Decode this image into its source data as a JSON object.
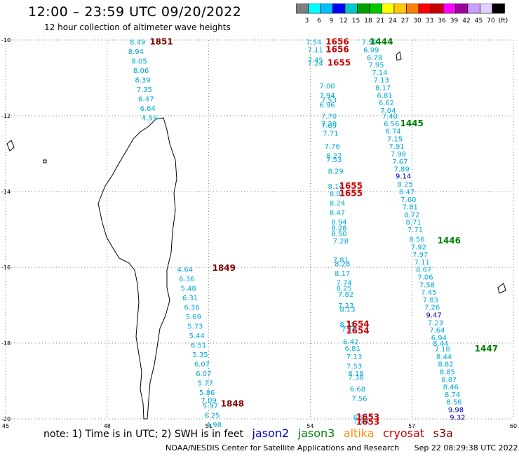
{
  "header": {
    "title": "12:00 – 23:59 UTC 09/20/2022",
    "subtitle": "12 hour collection of altimeter wave heights"
  },
  "colorbar": {
    "colors": [
      "#7f7f7f",
      "#00ffff",
      "#00bfff",
      "#0000ff",
      "#00c8c8",
      "#00a000",
      "#00c800",
      "#ffff00",
      "#ffc800",
      "#ff8000",
      "#ff0000",
      "#c80000",
      "#ff00ff",
      "#a000a0",
      "#c8a0ff",
      "#e0d0ff",
      "#000000"
    ],
    "labels": [
      "3",
      "6",
      "9",
      "12",
      "15",
      "18",
      "21",
      "24",
      "27",
      "30",
      "33",
      "36",
      "39",
      "42",
      "45",
      "70",
      "(ft)"
    ]
  },
  "axes": {
    "lat_labels": [
      "-10",
      "-12",
      "-14",
      "-16",
      "-18",
      "-20"
    ],
    "lon_labels": [
      "45",
      "48",
      "51",
      "54",
      "57",
      "60"
    ]
  },
  "colors": {
    "jason2": "#0000cc",
    "jason3": "#008000",
    "altika": "#ff8c00",
    "cryosat": "#cc0000",
    "s3a": "#800000",
    "wave": "#00a8d8",
    "wave_dark": "#0000b0"
  },
  "tracks": [
    {
      "id": "t1851",
      "time": "1851",
      "time_color": "#800000",
      "time_pos": [
        53.8,
        10.05
      ],
      "points": [
        {
          "v": "8.49",
          "lon": 48.9,
          "lat": -10.05
        },
        {
          "v": "8.94",
          "lon": 48.85,
          "lat": -10.3
        },
        {
          "v": "8.05",
          "lon": 48.95,
          "lat": -10.55
        },
        {
          "v": "8.06",
          "lon": 49.0,
          "lat": -10.8
        },
        {
          "v": "8.39",
          "lon": 49.05,
          "lat": -11.05
        },
        {
          "v": "7.35",
          "lon": 49.1,
          "lat": -11.3
        },
        {
          "v": "6.47",
          "lon": 49.15,
          "lat": -11.55
        },
        {
          "v": "6.64",
          "lon": 49.2,
          "lat": -11.8
        },
        {
          "v": "4.59",
          "lon": 49.25,
          "lat": -12.05
        }
      ]
    },
    {
      "id": "t1849",
      "time": "1849",
      "time_color": "#800000",
      "points": [
        {
          "v": "4.64",
          "lon": 50.3,
          "lat": -16.05
        },
        {
          "v": "6.36",
          "lon": 50.35,
          "lat": -16.3
        },
        {
          "v": "5.48",
          "lon": 50.4,
          "lat": -16.55
        },
        {
          "v": "6.31",
          "lon": 50.45,
          "lat": -16.8
        },
        {
          "v": "6.36",
          "lon": 50.5,
          "lat": -17.05
        },
        {
          "v": "5.69",
          "lon": 50.55,
          "lat": -17.3
        },
        {
          "v": "5.73",
          "lon": 50.6,
          "lat": -17.55
        },
        {
          "v": "5.44",
          "lon": 50.65,
          "lat": -17.8
        },
        {
          "v": "6.51",
          "lon": 50.7,
          "lat": -18.05
        },
        {
          "v": "5.35",
          "lon": 50.75,
          "lat": -18.3
        },
        {
          "v": "6.07",
          "lon": 50.8,
          "lat": -18.55
        },
        {
          "v": "6.07",
          "lon": 50.85,
          "lat": -18.8
        },
        {
          "v": "5.77",
          "lon": 50.9,
          "lat": -19.05
        },
        {
          "v": "5.86",
          "lon": 50.95,
          "lat": -19.3
        },
        {
          "v": "7.09",
          "lon": 51.0,
          "lat": -19.5
        },
        {
          "v": "5.97",
          "lon": 51.05,
          "lat": -19.65
        },
        {
          "v": "6.25",
          "lon": 51.1,
          "lat": -19.9
        },
        {
          "v": "4.98",
          "lon": 51.15,
          "lat": -20.15
        }
      ]
    }
  ],
  "labels": [
    {
      "t": "1851",
      "lon": 49.6,
      "lat": -10.05,
      "c": "#800000",
      "bold": true
    },
    {
      "t": "1849",
      "lon": 51.45,
      "lat": -16.02,
      "c": "#800000",
      "bold": true
    },
    {
      "t": "1848",
      "lon": 51.7,
      "lat": -19.6,
      "c": "#800000",
      "bold": true
    },
    {
      "t": "1656",
      "lon": 54.8,
      "lat": -10.05,
      "c": "#cc0000",
      "bold": true
    },
    {
      "t": "1656",
      "lon": 54.8,
      "lat": -10.25,
      "c": "#cc0000",
      "bold": true
    },
    {
      "t": "1655",
      "lon": 54.85,
      "lat": -10.6,
      "c": "#cc0000",
      "bold": true
    },
    {
      "t": "1444",
      "lon": 56.1,
      "lat": -10.05,
      "c": "#008000",
      "bold": true
    },
    {
      "t": "1445",
      "lon": 57.0,
      "lat": -12.2,
      "c": "#008000",
      "bold": true
    },
    {
      "t": "1655",
      "lon": 55.2,
      "lat": -13.85,
      "c": "#cc0000",
      "bold": true
    },
    {
      "t": "1655",
      "lon": 55.2,
      "lat": -14.05,
      "c": "#cc0000",
      "bold": true
    },
    {
      "t": "1446",
      "lon": 58.1,
      "lat": -15.3,
      "c": "#008000",
      "bold": true
    },
    {
      "t": "1654",
      "lon": 55.4,
      "lat": -17.5,
      "c": "#cc0000",
      "bold": true
    },
    {
      "t": "1654",
      "lon": 55.4,
      "lat": -17.68,
      "c": "#cc0000",
      "bold": true
    },
    {
      "t": "1447",
      "lon": 59.2,
      "lat": -18.15,
      "c": "#008000",
      "bold": true
    },
    {
      "t": "1653",
      "lon": 55.7,
      "lat": -19.95,
      "c": "#cc0000",
      "bold": true
    },
    {
      "t": "1653",
      "lon": 55.7,
      "lat": -20.08,
      "c": "#cc0000",
      "bold": true
    }
  ],
  "waves": [
    {
      "t": "7.54",
      "lon": 54.1,
      "lat": -10.05,
      "c": "#00a8d8"
    },
    {
      "t": "7.11",
      "lon": 54.15,
      "lat": -10.25,
      "c": "#00a8d8"
    },
    {
      "t": "7.45",
      "lon": 54.15,
      "lat": -10.52,
      "c": "#00a8d8"
    },
    {
      "t": "7.24",
      "lon": 54.15,
      "lat": -10.6,
      "c": "#00a8d8"
    },
    {
      "t": "7.00",
      "lon": 54.5,
      "lat": -11.2,
      "c": "#00a8d8"
    },
    {
      "t": "7.94",
      "lon": 54.5,
      "lat": -11.45,
      "c": "#00a8d8"
    },
    {
      "t": "7.53",
      "lon": 54.55,
      "lat": -11.57,
      "c": "#00a8d8"
    },
    {
      "t": "6.96",
      "lon": 54.5,
      "lat": -11.7,
      "c": "#00a8d8"
    },
    {
      "t": "7.70",
      "lon": 54.55,
      "lat": -12.0,
      "c": "#00a8d8"
    },
    {
      "t": "7.20",
      "lon": 54.55,
      "lat": -12.2,
      "c": "#00a8d8"
    },
    {
      "t": "7.09",
      "lon": 54.55,
      "lat": -12.25,
      "c": "#00a8d8"
    },
    {
      "t": "7.71",
      "lon": 54.6,
      "lat": -12.45,
      "c": "#00a8d8"
    },
    {
      "t": "7.76",
      "lon": 54.65,
      "lat": -12.8,
      "c": "#00a8d8"
    },
    {
      "t": "8.27",
      "lon": 54.7,
      "lat": -13.05,
      "c": "#00a8d8"
    },
    {
      "t": "7.53",
      "lon": 54.7,
      "lat": -13.15,
      "c": "#00a8d8"
    },
    {
      "t": "8.29",
      "lon": 54.75,
      "lat": -13.45,
      "c": "#00a8d8"
    },
    {
      "t": "8.14",
      "lon": 54.75,
      "lat": -13.85,
      "c": "#00a8d8"
    },
    {
      "t": "8.01",
      "lon": 54.8,
      "lat": -14.05,
      "c": "#00a8d8"
    },
    {
      "t": "8.24",
      "lon": 54.8,
      "lat": -14.3,
      "c": "#00a8d8"
    },
    {
      "t": "8.47",
      "lon": 54.8,
      "lat": -14.55,
      "c": "#00a8d8"
    },
    {
      "t": "8.94",
      "lon": 54.85,
      "lat": -14.8,
      "c": "#00a8d8"
    },
    {
      "t": "8.28",
      "lon": 54.85,
      "lat": -14.95,
      "c": "#00a8d8"
    },
    {
      "t": "8.50",
      "lon": 54.85,
      "lat": -15.1,
      "c": "#00a8d8"
    },
    {
      "t": "7.28",
      "lon": 54.9,
      "lat": -15.3,
      "c": "#00a8d8"
    },
    {
      "t": "7.81",
      "lon": 54.9,
      "lat": -15.8,
      "c": "#00a8d8"
    },
    {
      "t": "8.28",
      "lon": 54.95,
      "lat": -15.9,
      "c": "#00a8d8"
    },
    {
      "t": "8.17",
      "lon": 54.95,
      "lat": -16.15,
      "c": "#00a8d8"
    },
    {
      "t": "7.74",
      "lon": 55.0,
      "lat": -16.4,
      "c": "#00a8d8"
    },
    {
      "t": "8.25",
      "lon": 55.0,
      "lat": -16.55,
      "c": "#00a8d8"
    },
    {
      "t": "7.82",
      "lon": 55.05,
      "lat": -16.7,
      "c": "#00a8d8"
    },
    {
      "t": "7.23",
      "lon": 55.05,
      "lat": -17.0,
      "c": "#00a8d8"
    },
    {
      "t": "8.13",
      "lon": 55.1,
      "lat": -17.1,
      "c": "#00a8d8"
    },
    {
      "t": "8.12",
      "lon": 55.1,
      "lat": -17.5,
      "c": "#00a8d8"
    },
    {
      "t": "7.12",
      "lon": 55.15,
      "lat": -17.62,
      "c": "#00a8d8"
    },
    {
      "t": "6.42",
      "lon": 55.2,
      "lat": -17.95,
      "c": "#00a8d8"
    },
    {
      "t": "6.81",
      "lon": 55.25,
      "lat": -18.13,
      "c": "#00a8d8"
    },
    {
      "t": "7.13",
      "lon": 55.3,
      "lat": -18.35,
      "c": "#00a8d8"
    },
    {
      "t": "7.53",
      "lon": 55.3,
      "lat": -18.6,
      "c": "#00a8d8"
    },
    {
      "t": "8.18",
      "lon": 55.35,
      "lat": -18.8,
      "c": "#00a8d8"
    },
    {
      "t": "7.38",
      "lon": 55.35,
      "lat": -18.9,
      "c": "#00a8d8"
    },
    {
      "t": "6.68",
      "lon": 55.4,
      "lat": -19.2,
      "c": "#00a8d8"
    },
    {
      "t": "7.56",
      "lon": 55.45,
      "lat": -19.45,
      "c": "#00a8d8"
    },
    {
      "t": "6.91",
      "lon": 55.5,
      "lat": -19.95,
      "c": "#00a8d8"
    },
    {
      "t": "7.98",
      "lon": 55.5,
      "lat": -20.05,
      "c": "#00a8d8"
    },
    {
      "t": "7.59",
      "lon": 55.75,
      "lat": -10.05,
      "c": "#00a8d8"
    },
    {
      "t": "6.99",
      "lon": 55.8,
      "lat": -10.25,
      "c": "#00a8d8"
    },
    {
      "t": "6.78",
      "lon": 55.9,
      "lat": -10.45,
      "c": "#00a8d8"
    },
    {
      "t": "7.95",
      "lon": 55.95,
      "lat": -10.65,
      "c": "#00a8d8"
    },
    {
      "t": "7.14",
      "lon": 56.05,
      "lat": -10.85,
      "c": "#00a8d8"
    },
    {
      "t": "7.13",
      "lon": 56.1,
      "lat": -11.05,
      "c": "#00a8d8"
    },
    {
      "t": "8.17",
      "lon": 56.15,
      "lat": -11.25,
      "c": "#00a8d8"
    },
    {
      "t": "6.81",
      "lon": 56.2,
      "lat": -11.45,
      "c": "#00a8d8"
    },
    {
      "t": "6.62",
      "lon": 56.25,
      "lat": -11.65,
      "c": "#00a8d8"
    },
    {
      "t": "7.04",
      "lon": 56.3,
      "lat": -11.85,
      "c": "#00a8d8"
    },
    {
      "t": "7.40",
      "lon": 56.35,
      "lat": -12.0,
      "c": "#00a8d8"
    },
    {
      "t": "6.56",
      "lon": 56.4,
      "lat": -12.2,
      "c": "#00a8d8"
    },
    {
      "t": "6.74",
      "lon": 56.45,
      "lat": -12.4,
      "c": "#00a8d8"
    },
    {
      "t": "7.15",
      "lon": 56.5,
      "lat": -12.6,
      "c": "#00a8d8"
    },
    {
      "t": "7.91",
      "lon": 56.55,
      "lat": -12.8,
      "c": "#00a8d8"
    },
    {
      "t": "7.98",
      "lon": 56.6,
      "lat": -13.0,
      "c": "#00a8d8"
    },
    {
      "t": "7.67",
      "lon": 56.65,
      "lat": -13.2,
      "c": "#00a8d8"
    },
    {
      "t": "7.89",
      "lon": 56.7,
      "lat": -13.4,
      "c": "#00a8d8"
    },
    {
      "t": "9.14",
      "lon": 56.75,
      "lat": -13.58,
      "c": "#0000b0"
    },
    {
      "t": "8.25",
      "lon": 56.8,
      "lat": -13.8,
      "c": "#00a8d8"
    },
    {
      "t": "8.47",
      "lon": 56.85,
      "lat": -14.0,
      "c": "#00a8d8"
    },
    {
      "t": "7.60",
      "lon": 56.9,
      "lat": -14.2,
      "c": "#00a8d8"
    },
    {
      "t": "7.81",
      "lon": 56.95,
      "lat": -14.4,
      "c": "#00a8d8"
    },
    {
      "t": "8.72",
      "lon": 57.0,
      "lat": -14.6,
      "c": "#00a8d8"
    },
    {
      "t": "8.71",
      "lon": 57.05,
      "lat": -14.8,
      "c": "#00a8d8"
    },
    {
      "t": "7.71",
      "lon": 57.1,
      "lat": -15.0,
      "c": "#00a8d8"
    },
    {
      "t": "8.56",
      "lon": 57.15,
      "lat": -15.25,
      "c": "#00a8d8"
    },
    {
      "t": "7.92",
      "lon": 57.2,
      "lat": -15.45,
      "c": "#00a8d8"
    },
    {
      "t": "7.97",
      "lon": 57.25,
      "lat": -15.65,
      "c": "#00a8d8"
    },
    {
      "t": "7.11",
      "lon": 57.3,
      "lat": -15.85,
      "c": "#00a8d8"
    },
    {
      "t": "8.67",
      "lon": 57.35,
      "lat": -16.05,
      "c": "#00a8d8"
    },
    {
      "t": "7.06",
      "lon": 57.4,
      "lat": -16.25,
      "c": "#00a8d8"
    },
    {
      "t": "7.58",
      "lon": 57.45,
      "lat": -16.45,
      "c": "#00a8d8"
    },
    {
      "t": "7.45",
      "lon": 57.5,
      "lat": -16.65,
      "c": "#00a8d8"
    },
    {
      "t": "7.83",
      "lon": 57.55,
      "lat": -16.85,
      "c": "#00a8d8"
    },
    {
      "t": "7.26",
      "lon": 57.6,
      "lat": -17.05,
      "c": "#00a8d8"
    },
    {
      "t": "9.47",
      "lon": 57.65,
      "lat": -17.25,
      "c": "#0000b0"
    },
    {
      "t": "7.23",
      "lon": 57.7,
      "lat": -17.45,
      "c": "#00a8d8"
    },
    {
      "t": "7.64",
      "lon": 57.75,
      "lat": -17.65,
      "c": "#00a8d8"
    },
    {
      "t": "6.94",
      "lon": 57.8,
      "lat": -17.85,
      "c": "#00a8d8"
    },
    {
      "t": "8.44",
      "lon": 57.85,
      "lat": -18.0,
      "c": "#00a8d8"
    },
    {
      "t": "7.18",
      "lon": 57.9,
      "lat": -18.15,
      "c": "#00a8d8"
    },
    {
      "t": "8.44",
      "lon": 57.95,
      "lat": -18.35,
      "c": "#00a8d8"
    },
    {
      "t": "8.82",
      "lon": 58.0,
      "lat": -18.55,
      "c": "#00a8d8"
    },
    {
      "t": "8.85",
      "lon": 58.05,
      "lat": -18.75,
      "c": "#00a8d8"
    },
    {
      "t": "8.87",
      "lon": 58.1,
      "lat": -18.95,
      "c": "#00a8d8"
    },
    {
      "t": "8.46",
      "lon": 58.15,
      "lat": -19.15,
      "c": "#00a8d8"
    },
    {
      "t": "8.74",
      "lon": 58.2,
      "lat": -19.35,
      "c": "#00a8d8"
    },
    {
      "t": "8.56",
      "lon": 58.25,
      "lat": -19.55,
      "c": "#00a8d8"
    },
    {
      "t": "9.98",
      "lon": 58.3,
      "lat": -19.75,
      "c": "#0000b0"
    },
    {
      "t": "9.32",
      "lon": 58.35,
      "lat": -19.95,
      "c": "#0000b0"
    }
  ],
  "note": "note:  1) Time is in UTC; 2) SWH is in feet",
  "legend": [
    {
      "label": "jason2",
      "color": "#0000cc"
    },
    {
      "label": "jason3",
      "color": "#008000"
    },
    {
      "label": "altika",
      "color": "#ff8c00"
    },
    {
      "label": "cryosat",
      "color": "#cc0000"
    },
    {
      "label": "s3a",
      "color": "#800000"
    }
  ],
  "footer": {
    "org": "NOAA/NESDIS Center for Satellite Applications and Research",
    "stamp": "Sep 22 08:29:38 UTC 2022"
  }
}
